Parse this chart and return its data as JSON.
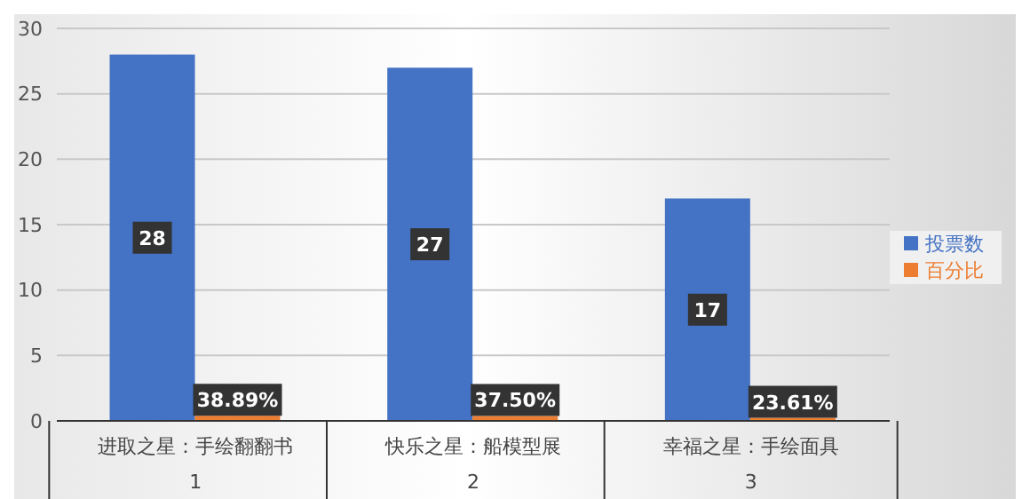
{
  "chart_data": {
    "type": "bar",
    "categories": [
      "进取之星：手绘翻翻书",
      "快乐之星：船模型展",
      "幸福之星：手绘面具"
    ],
    "annotations": [
      "1",
      "2",
      "3"
    ],
    "series": [
      {
        "name": "投票数",
        "color": "#4472c4",
        "values": [
          28,
          27,
          17
        ],
        "value_labels": [
          "28",
          "27",
          "17"
        ]
      },
      {
        "name": "百分比",
        "color": "#ed7d31",
        "values": [
          0.3889,
          0.375,
          0.2361
        ],
        "value_labels": [
          "38.89%",
          "37.50%",
          "23.61%"
        ]
      }
    ],
    "ylim": [
      0,
      30
    ],
    "yticks": [
      0,
      5,
      10,
      15,
      20,
      25,
      30
    ],
    "grid": "y",
    "legend": "right"
  }
}
